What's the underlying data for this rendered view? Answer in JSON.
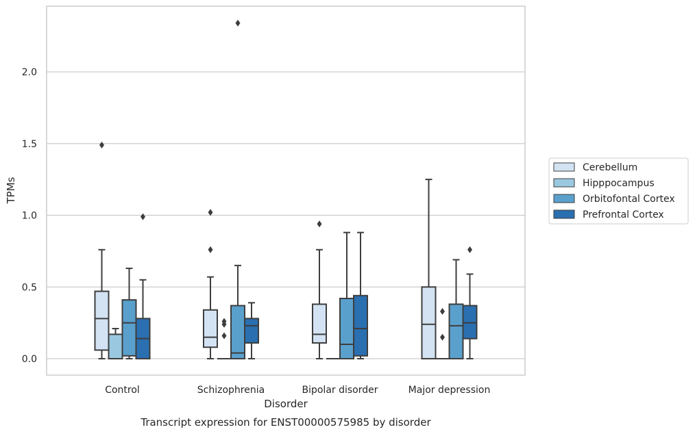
{
  "chart_data": {
    "type": "box",
    "caption": "Transcript expression for ENST00000575985 by disorder",
    "xlabel": "Disorder",
    "ylabel": "TPMs",
    "ylim": [
      -0.11,
      2.48
    ],
    "yticks": [
      0.0,
      0.5,
      1.0,
      1.5,
      2.0
    ],
    "ytick_labels": [
      "0.0",
      "0.5",
      "1.0",
      "1.5",
      "2.0"
    ],
    "grid": "horizontal",
    "legend_position": "right",
    "categories": [
      "Control",
      "Schizophrenia",
      "Bipolar disorder",
      "Major depression"
    ],
    "series": [
      {
        "name": "Cerebellum",
        "color": "#d3e3f3",
        "boxes": [
          {
            "whislo": 0.0,
            "q1": 0.06,
            "med": 0.28,
            "q3": 0.47,
            "whishi": 0.76,
            "fliers": [
              1.49
            ]
          },
          {
            "whislo": 0.0,
            "q1": 0.08,
            "med": 0.15,
            "q3": 0.34,
            "whishi": 0.57,
            "fliers": [
              0.76,
              1.02
            ]
          },
          {
            "whislo": 0.0,
            "q1": 0.11,
            "med": 0.17,
            "q3": 0.38,
            "whishi": 0.76,
            "fliers": [
              0.94
            ]
          },
          {
            "whislo": 0.0,
            "q1": 0.0,
            "med": 0.24,
            "q3": 0.5,
            "whishi": 1.25,
            "fliers": []
          }
        ]
      },
      {
        "name": "Hipppocampus",
        "color": "#9ac8e0",
        "boxes": [
          {
            "whislo": 0.0,
            "q1": 0.0,
            "med": 0.0,
            "q3": 0.17,
            "whishi": 0.21,
            "fliers": []
          },
          {
            "whislo": 0.0,
            "q1": 0.0,
            "med": 0.0,
            "q3": 0.0,
            "whishi": 0.0,
            "fliers": [
              0.16,
              0.24,
              0.26
            ]
          },
          {
            "whislo": 0.0,
            "q1": 0.0,
            "med": 0.0,
            "q3": 0.0,
            "whishi": 0.0,
            "fliers": []
          },
          {
            "whislo": 0.0,
            "q1": 0.0,
            "med": 0.0,
            "q3": 0.0,
            "whishi": 0.0,
            "fliers": [
              0.15,
              0.33
            ]
          }
        ]
      },
      {
        "name": "Orbitofontal Cortex",
        "color": "#5aa0cd",
        "boxes": [
          {
            "whislo": 0.0,
            "q1": 0.02,
            "med": 0.25,
            "q3": 0.41,
            "whishi": 0.63,
            "fliers": []
          },
          {
            "whislo": 0.0,
            "q1": 0.0,
            "med": 0.04,
            "q3": 0.37,
            "whishi": 0.65,
            "fliers": [
              2.34
            ]
          },
          {
            "whislo": 0.0,
            "q1": 0.0,
            "med": 0.1,
            "q3": 0.42,
            "whishi": 0.88,
            "fliers": []
          },
          {
            "whislo": 0.0,
            "q1": 0.0,
            "med": 0.23,
            "q3": 0.38,
            "whishi": 0.69,
            "fliers": []
          }
        ]
      },
      {
        "name": "Prefrontal Cortex",
        "color": "#2a6fb0",
        "boxes": [
          {
            "whislo": 0.0,
            "q1": 0.0,
            "med": 0.14,
            "q3": 0.28,
            "whishi": 0.55,
            "fliers": [
              0.99
            ]
          },
          {
            "whislo": 0.0,
            "q1": 0.11,
            "med": 0.23,
            "q3": 0.28,
            "whishi": 0.39,
            "fliers": []
          },
          {
            "whislo": 0.0,
            "q1": 0.02,
            "med": 0.21,
            "q3": 0.44,
            "whishi": 0.88,
            "fliers": []
          },
          {
            "whislo": 0.0,
            "q1": 0.14,
            "med": 0.25,
            "q3": 0.37,
            "whishi": 0.59,
            "fliers": [
              0.76
            ]
          }
        ]
      }
    ]
  }
}
